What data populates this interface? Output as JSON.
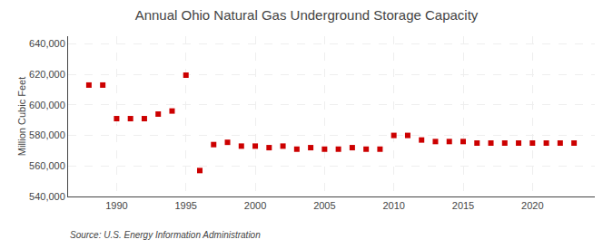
{
  "chart_data": {
    "type": "scatter",
    "title": "Annual Ohio Natural Gas Underground Storage Capacity",
    "ylabel": "Million Cubic Feet",
    "annotations": [
      "Source: U.S. Energy Information Administration"
    ],
    "x": [
      1988,
      1989,
      1990,
      1991,
      1992,
      1993,
      1994,
      1995,
      1996,
      1997,
      1998,
      1999,
      2000,
      2001,
      2002,
      2003,
      2004,
      2005,
      2006,
      2007,
      2008,
      2009,
      2010,
      2011,
      2012,
      2013,
      2014,
      2015,
      2016,
      2017,
      2018,
      2019,
      2020,
      2021,
      2022,
      2023
    ],
    "values": [
      613000,
      613000,
      591000,
      591000,
      591000,
      594000,
      596000,
      619500,
      557000,
      574000,
      575500,
      573000,
      573000,
      572000,
      573000,
      571000,
      572000,
      571000,
      571000,
      572000,
      571000,
      571000,
      580000,
      580000,
      577000,
      576000,
      576000,
      576000,
      575000,
      575000,
      575000,
      575000,
      575000,
      575000,
      575000,
      575000
    ],
    "color": "#cc0000",
    "marker": "square",
    "xlim": [
      1986.5,
      2024.5
    ],
    "xticks": [
      1990,
      1995,
      2000,
      2005,
      2010,
      2015,
      2020
    ],
    "ylim": [
      540000,
      645000
    ],
    "yticks": [
      {
        "value": 540000,
        "label": "540,000"
      },
      {
        "value": 560000,
        "label": "560,000"
      },
      {
        "value": 580000,
        "label": "580,000"
      },
      {
        "value": 600000,
        "label": "600,000"
      },
      {
        "value": 620000,
        "label": "620,000"
      },
      {
        "value": 640000,
        "label": "640,000"
      }
    ],
    "grid": true
  }
}
